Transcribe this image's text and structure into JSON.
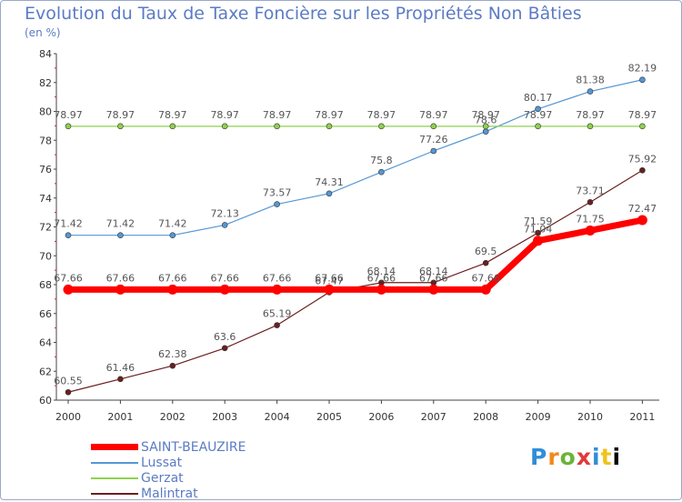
{
  "title": "Evolution du Taux de Taxe Foncière sur les Propriétés Non Bâties",
  "subtitle": "(en %)",
  "logo_text": "Proxiti",
  "chart_data": {
    "type": "line",
    "title": "Evolution du Taux de Taxe Foncière sur les Propriétés Non Bâties",
    "ylabel": "(en %)",
    "xlabel": "",
    "ylim": [
      60,
      84
    ],
    "ytick_step": 2,
    "grid": false,
    "legend_position": "bottom-left",
    "x": [
      "2000",
      "2001",
      "2002",
      "2003",
      "2004",
      "2005",
      "2006",
      "2007",
      "2008",
      "2009",
      "2010",
      "2011"
    ],
    "series": [
      {
        "name": "SAINT-BEAUZIRE",
        "color": "#ff0000",
        "emphasis": true,
        "values": [
          67.66,
          67.66,
          67.66,
          67.66,
          67.66,
          67.66,
          67.66,
          67.66,
          67.66,
          71.04,
          71.75,
          72.47
        ],
        "labels": [
          "67.66",
          "67.66",
          "67.66",
          "67.66",
          "67.66",
          "67.66",
          "67.66",
          "67.66",
          "67.66",
          "71.04",
          "71.75",
          "72.47"
        ]
      },
      {
        "name": "Lussat",
        "color": "#5597d4",
        "emphasis": false,
        "values": [
          71.42,
          71.42,
          71.42,
          72.13,
          73.57,
          74.31,
          75.8,
          77.26,
          78.6,
          80.17,
          81.38,
          82.19
        ],
        "labels": [
          "71.42",
          "71.42",
          "71.42",
          "72.13",
          "73.57",
          "74.31",
          "75.8",
          "77.26",
          "78.6",
          "80.17",
          "81.38",
          "82.19"
        ]
      },
      {
        "name": "Gerzat",
        "color": "#8fd14f",
        "emphasis": false,
        "values": [
          78.97,
          78.97,
          78.97,
          78.97,
          78.97,
          78.97,
          78.97,
          78.97,
          78.97,
          78.97,
          78.97,
          78.97
        ],
        "labels": [
          "78.97",
          "78.97",
          "78.97",
          "78.97",
          "78.97",
          "78.97",
          "78.97",
          "78.97",
          "78.97",
          "78.97",
          "78.97",
          "78.97"
        ]
      },
      {
        "name": "Malintrat",
        "color": "#6b1f1f",
        "emphasis": false,
        "values": [
          60.55,
          61.46,
          62.38,
          63.6,
          65.19,
          67.47,
          68.14,
          68.14,
          69.5,
          71.59,
          73.71,
          75.92
        ],
        "labels": [
          "60.55",
          "61.46",
          "62.38",
          "63.6",
          "65.19",
          "67.47",
          "68.14",
          "68.14",
          "69.5",
          "71.59",
          "73.71",
          "75.92"
        ]
      }
    ]
  }
}
